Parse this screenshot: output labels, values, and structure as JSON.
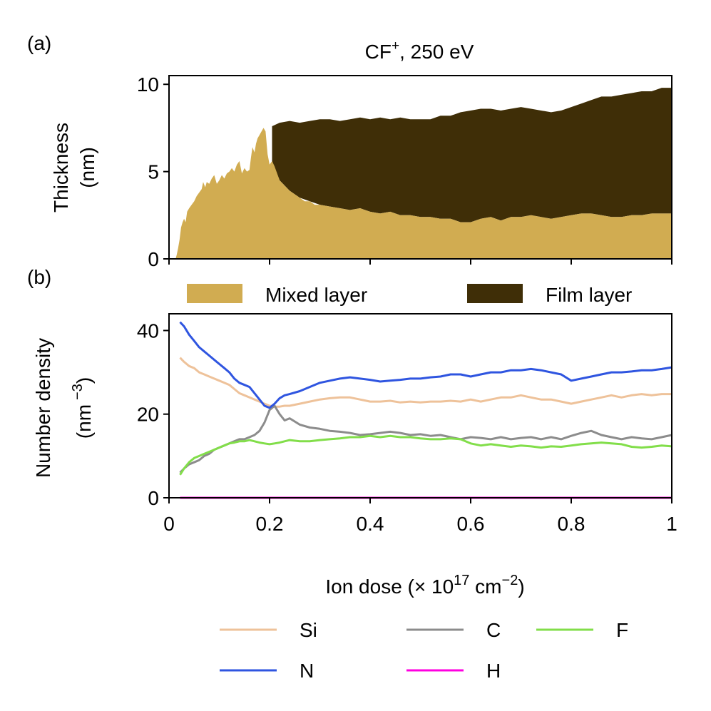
{
  "chart_data": [
    {
      "panel_label": "(a)",
      "type": "area",
      "title": "CF+, 250 eV",
      "title_main": "CF",
      "title_sup": "+",
      "title_rest": ", 250 eV",
      "ylabel_line1": "Thickness",
      "ylabel_line2": "(nm)",
      "xlim": [
        0,
        1
      ],
      "ylim": [
        0,
        10.5
      ],
      "yticks": [
        "0",
        "5",
        "10"
      ],
      "xticks_at": [
        0,
        0.2,
        0.4,
        0.6,
        0.8,
        1.0
      ],
      "legend_position": "below",
      "legend": [
        "Mixed layer",
        "Film layer"
      ],
      "colors": {
        "mixed": "#D1AC51",
        "film": "#3F2E07"
      },
      "mixed_layer": {
        "x": [
          0.013,
          0.015,
          0.018,
          0.021,
          0.024,
          0.027,
          0.03,
          0.033,
          0.036,
          0.04,
          0.045,
          0.05,
          0.055,
          0.06,
          0.065,
          0.068,
          0.072,
          0.075,
          0.08,
          0.085,
          0.09,
          0.095,
          0.1,
          0.105,
          0.11,
          0.115,
          0.12,
          0.125,
          0.13,
          0.135,
          0.14,
          0.145,
          0.15,
          0.155,
          0.16,
          0.163,
          0.166,
          0.17,
          0.173,
          0.176,
          0.18,
          0.184,
          0.188,
          0.192,
          0.196,
          0.2,
          0.205,
          0.21,
          0.215,
          0.22,
          0.23,
          0.24,
          0.25,
          0.26,
          0.27,
          0.28,
          0.29,
          0.3,
          0.32,
          0.34,
          0.36,
          0.38,
          0.4,
          0.42,
          0.44,
          0.46,
          0.48,
          0.5,
          0.52,
          0.54,
          0.56,
          0.58,
          0.59,
          0.6,
          0.62,
          0.64,
          0.66,
          0.68,
          0.7,
          0.72,
          0.74,
          0.76,
          0.78,
          0.8,
          0.82,
          0.84,
          0.86,
          0.88,
          0.9,
          0.92,
          0.94,
          0.96,
          0.98,
          1.0
        ],
        "thickness": [
          0,
          0.2,
          0.6,
          1.1,
          1.8,
          2.1,
          2.3,
          2.1,
          2.7,
          2.9,
          3.1,
          3.3,
          3.6,
          3.8,
          4.0,
          4.4,
          4.1,
          4.4,
          4.3,
          4.6,
          4.8,
          4.3,
          4.5,
          4.8,
          4.6,
          4.9,
          5.0,
          5.2,
          5.0,
          5.4,
          5.6,
          4.9,
          5.2,
          5.0,
          5.1,
          5.8,
          6.4,
          6.1,
          6.6,
          6.9,
          7.1,
          7.3,
          7.5,
          7.3,
          6.0,
          5.4,
          5.6,
          5.3,
          4.9,
          4.5,
          4.2,
          3.9,
          3.7,
          3.5,
          3.3,
          3.3,
          3.1,
          3.1,
          3.0,
          2.9,
          2.8,
          2.9,
          2.7,
          2.6,
          2.7,
          2.5,
          2.5,
          2.4,
          2.4,
          2.3,
          2.3,
          2.1,
          2.1,
          2.1,
          2.3,
          2.4,
          2.2,
          2.4,
          2.4,
          2.5,
          2.4,
          2.3,
          2.4,
          2.5,
          2.6,
          2.6,
          2.5,
          2.4,
          2.4,
          2.5,
          2.5,
          2.6,
          2.6,
          2.6
        ]
      },
      "film_layer_top": {
        "x": [
          0.205,
          0.22,
          0.24,
          0.26,
          0.28,
          0.3,
          0.32,
          0.34,
          0.36,
          0.38,
          0.4,
          0.42,
          0.44,
          0.46,
          0.48,
          0.5,
          0.52,
          0.54,
          0.56,
          0.58,
          0.6,
          0.62,
          0.64,
          0.66,
          0.68,
          0.7,
          0.72,
          0.74,
          0.76,
          0.78,
          0.8,
          0.82,
          0.84,
          0.86,
          0.88,
          0.9,
          0.92,
          0.94,
          0.96,
          0.98,
          1.0
        ],
        "thickness": [
          7.6,
          7.8,
          7.9,
          7.8,
          7.9,
          8.0,
          8.0,
          7.9,
          8.0,
          8.1,
          8.0,
          8.1,
          8.0,
          8.1,
          8.0,
          8.0,
          8.0,
          8.2,
          8.2,
          8.4,
          8.5,
          8.6,
          8.6,
          8.5,
          8.6,
          8.7,
          8.6,
          8.5,
          8.4,
          8.5,
          8.7,
          8.9,
          9.1,
          9.3,
          9.3,
          9.4,
          9.5,
          9.6,
          9.6,
          9.8,
          9.8
        ]
      }
    },
    {
      "panel_label": "(b)",
      "type": "line",
      "ylabel_line1": "Number density",
      "ylabel_line2": "(nm −3)",
      "ylabel_unit": "(nm",
      "ylabel_sup": "−3",
      "ylabel_close": ")",
      "xlabel_main": "Ion dose (× 10",
      "xlabel_sup1": "17",
      "xlabel_mid": " cm",
      "xlabel_sup2": "−2",
      "xlabel_close": ")",
      "xlim": [
        0,
        1
      ],
      "ylim": [
        0,
        44
      ],
      "xticks": [
        "0",
        "0.2",
        "0.4",
        "0.6",
        "0.8",
        "1"
      ],
      "yticks": [
        "0",
        "20",
        "40"
      ],
      "legend_position": "bottom",
      "x": [
        0.022,
        0.03,
        0.04,
        0.05,
        0.06,
        0.07,
        0.08,
        0.09,
        0.1,
        0.11,
        0.12,
        0.13,
        0.14,
        0.15,
        0.16,
        0.17,
        0.18,
        0.19,
        0.2,
        0.21,
        0.22,
        0.23,
        0.24,
        0.26,
        0.28,
        0.3,
        0.32,
        0.34,
        0.36,
        0.38,
        0.4,
        0.42,
        0.44,
        0.46,
        0.48,
        0.5,
        0.52,
        0.54,
        0.56,
        0.58,
        0.6,
        0.62,
        0.64,
        0.66,
        0.68,
        0.7,
        0.72,
        0.74,
        0.76,
        0.78,
        0.8,
        0.82,
        0.84,
        0.86,
        0.88,
        0.9,
        0.92,
        0.94,
        0.96,
        0.98,
        1.0
      ],
      "series": [
        {
          "name": "Si",
          "color": "#EEC29A",
          "values": [
            33.5,
            32.5,
            31.5,
            31.0,
            30.0,
            29.5,
            29.0,
            28.5,
            28.0,
            27.5,
            27.0,
            26.0,
            25.0,
            24.5,
            24.0,
            23.5,
            23.0,
            22.5,
            22.0,
            21.8,
            21.8,
            22.0,
            22.0,
            22.5,
            23.0,
            23.5,
            23.8,
            24.0,
            24.0,
            23.5,
            23.0,
            23.0,
            23.2,
            22.8,
            23.0,
            22.8,
            23.0,
            23.0,
            23.2,
            23.0,
            23.5,
            23.0,
            23.5,
            24.0,
            24.0,
            24.5,
            24.0,
            23.5,
            23.5,
            23.0,
            22.5,
            23.0,
            23.5,
            24.0,
            24.5,
            24.0,
            24.5,
            24.8,
            24.5,
            24.8,
            24.8
          ]
        },
        {
          "name": "C",
          "color": "#8C8C8C",
          "values": [
            6.0,
            7.0,
            8.0,
            8.5,
            9.0,
            10.0,
            10.5,
            11.5,
            12.0,
            12.5,
            13.0,
            13.5,
            14.0,
            14.0,
            14.5,
            15.0,
            16.0,
            18.0,
            21.0,
            22.0,
            20.0,
            18.5,
            19.0,
            17.5,
            16.8,
            16.5,
            16.0,
            15.8,
            15.5,
            15.0,
            15.2,
            15.5,
            15.8,
            15.5,
            15.0,
            15.2,
            14.8,
            15.0,
            14.5,
            14.0,
            14.5,
            14.3,
            14.0,
            14.5,
            14.0,
            14.3,
            14.5,
            14.0,
            14.5,
            14.0,
            14.8,
            15.5,
            16.0,
            15.0,
            14.5,
            14.0,
            14.5,
            14.2,
            14.0,
            14.5,
            15.0
          ]
        },
        {
          "name": "F",
          "color": "#82DE4A",
          "values": [
            5.5,
            7.0,
            8.5,
            9.5,
            10.0,
            10.5,
            11.0,
            11.5,
            12.0,
            12.5,
            13.0,
            13.2,
            13.5,
            13.5,
            13.8,
            13.5,
            13.2,
            13.0,
            12.8,
            13.0,
            13.2,
            13.5,
            13.8,
            13.5,
            13.5,
            13.8,
            14.0,
            14.2,
            14.5,
            14.5,
            14.8,
            14.5,
            14.8,
            14.5,
            14.5,
            14.2,
            14.0,
            14.0,
            14.2,
            14.0,
            13.0,
            12.5,
            12.8,
            12.5,
            12.2,
            12.5,
            12.3,
            12.0,
            12.3,
            12.2,
            12.5,
            12.8,
            13.0,
            13.2,
            13.0,
            12.8,
            12.2,
            12.0,
            12.2,
            12.5,
            12.3
          ]
        },
        {
          "name": "N",
          "color": "#2F55E0",
          "values": [
            42.0,
            41.0,
            39.0,
            37.5,
            36.0,
            35.0,
            34.0,
            33.0,
            32.0,
            31.0,
            30.0,
            28.5,
            27.5,
            27.0,
            26.5,
            25.0,
            23.5,
            22.0,
            21.5,
            22.5,
            23.8,
            24.5,
            24.8,
            25.5,
            26.5,
            27.5,
            28.0,
            28.5,
            28.8,
            28.5,
            28.2,
            27.8,
            28.0,
            28.2,
            28.5,
            28.5,
            28.8,
            29.0,
            29.5,
            29.5,
            29.0,
            29.5,
            30.0,
            30.0,
            30.5,
            30.5,
            30.8,
            30.5,
            30.0,
            29.5,
            28.0,
            28.5,
            29.0,
            29.5,
            30.0,
            30.0,
            30.2,
            30.5,
            30.5,
            30.8,
            31.2
          ]
        },
        {
          "name": "H",
          "color": "#FF00E0",
          "values": [
            0,
            0,
            0,
            0,
            0,
            0,
            0,
            0,
            0,
            0,
            0,
            0,
            0,
            0,
            0,
            0,
            0,
            0,
            0,
            0,
            0,
            0,
            0,
            0,
            0,
            0,
            0,
            0,
            0,
            0,
            0,
            0,
            0,
            0,
            0,
            0,
            0,
            0,
            0,
            0,
            0,
            0,
            0,
            0,
            0,
            0,
            0,
            0,
            0,
            0,
            0,
            0,
            0,
            0,
            0,
            0,
            0,
            0,
            0,
            0,
            0
          ]
        }
      ],
      "legend_order": [
        "Si",
        "C",
        "F",
        "N",
        "H"
      ]
    }
  ]
}
